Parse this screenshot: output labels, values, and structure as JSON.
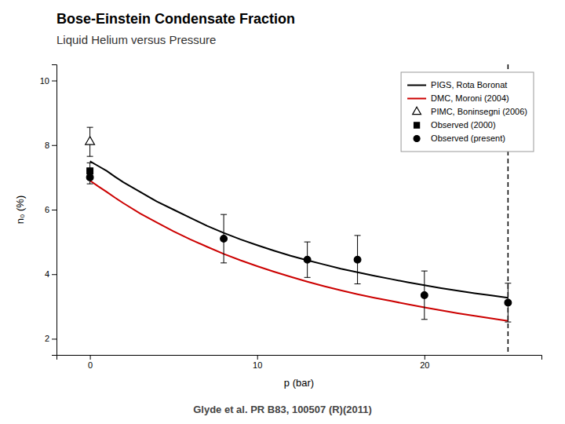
{
  "chart_data": {
    "type": "line",
    "title": "Bose-Einstein Condensate Fraction",
    "subtitle": "Liquid Helium versus Pressure",
    "annotations": [
      "Glyde et al. PR B83, 100507 (R)(2011)"
    ],
    "xlabel": "p (bar)",
    "ylabel": "n₀ (%)",
    "xlim": [
      -2,
      27
    ],
    "ylim": [
      1.5,
      10.5
    ],
    "xticks": [
      0,
      10,
      20
    ],
    "yticks": [
      2,
      4,
      6,
      8,
      10
    ],
    "grid": false,
    "legend": "upper right",
    "vline": {
      "x": 25,
      "line_style": "dashed"
    },
    "series": [
      {
        "name": "PIGS, Rota Boronat",
        "type": "line",
        "color": "#000000",
        "x": [
          0,
          0.5,
          1,
          1.5,
          2,
          3,
          4,
          5,
          6,
          7,
          8,
          9,
          10,
          11,
          12,
          13,
          14,
          15,
          16,
          17,
          18,
          19,
          20,
          21,
          22,
          23,
          24,
          25
        ],
        "values": [
          7.5,
          7.35,
          7.2,
          7.02,
          6.85,
          6.55,
          6.25,
          6.0,
          5.75,
          5.5,
          5.28,
          5.08,
          4.9,
          4.73,
          4.57,
          4.43,
          4.3,
          4.17,
          4.06,
          3.95,
          3.85,
          3.75,
          3.66,
          3.57,
          3.49,
          3.41,
          3.34,
          3.27
        ]
      },
      {
        "name": "DMC, Moroni (2004)",
        "type": "line",
        "color": "#CC0000",
        "x": [
          0,
          0.5,
          1,
          1.5,
          2,
          3,
          4,
          5,
          6,
          7,
          8,
          9,
          10,
          11,
          12,
          13,
          14,
          15,
          16,
          17,
          18,
          19,
          20,
          21,
          22,
          23,
          24,
          25
        ],
        "values": [
          6.9,
          6.72,
          6.55,
          6.37,
          6.2,
          5.88,
          5.6,
          5.33,
          5.08,
          4.85,
          4.63,
          4.43,
          4.25,
          4.08,
          3.92,
          3.77,
          3.63,
          3.5,
          3.38,
          3.27,
          3.17,
          3.07,
          2.97,
          2.88,
          2.79,
          2.71,
          2.63,
          2.55
        ]
      },
      {
        "name": "PIMC, Boninsegni (2006)",
        "type": "scatter",
        "marker": "open-triangle",
        "color": "#000000",
        "x": [
          0
        ],
        "values": [
          8.1
        ],
        "errors": [
          0.45
        ]
      },
      {
        "name": "Observed (2000)",
        "type": "scatter",
        "marker": "square",
        "color": "#000000",
        "x": [
          0
        ],
        "values": [
          7.2
        ],
        "errors": [
          0.25
        ]
      },
      {
        "name": "Observed (present)",
        "type": "scatter",
        "marker": "circle",
        "color": "#000000",
        "x": [
          0,
          8,
          13,
          16,
          20,
          25
        ],
        "values": [
          7.0,
          5.1,
          4.45,
          4.45,
          3.35,
          3.12
        ],
        "errors": [
          0.2,
          0.75,
          0.55,
          0.75,
          0.75,
          0.6
        ]
      }
    ]
  }
}
